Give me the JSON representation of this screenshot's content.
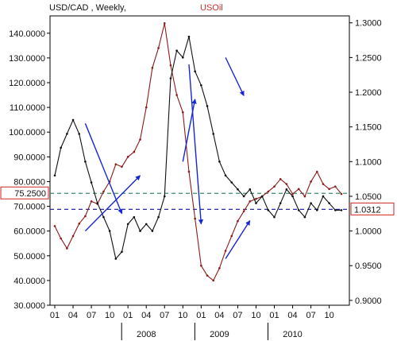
{
  "chart_data": {
    "type": "line",
    "title_left": "USD/CAD , Weekly,",
    "title_right": "USOil",
    "left_axis": {
      "range": [
        30,
        147
      ],
      "ticks": [
        "140.0000",
        "130.0000",
        "120.0000",
        "110.0000",
        "100.0000",
        "90.0000",
        "80.0000",
        "70.0000",
        "60.0000",
        "50.0000",
        "40.0000",
        "30.0000"
      ],
      "tick_values": [
        140,
        130,
        120,
        110,
        100,
        90,
        80,
        70,
        60,
        50,
        40,
        30
      ],
      "current_label": "75.2500",
      "current_value": 75.25,
      "label_color": "#cc2222"
    },
    "right_axis": {
      "range": [
        0.893,
        1.31
      ],
      "ticks": [
        "1.3000",
        "1.2500",
        "1.2000",
        "1.1500",
        "1.1000",
        "1.0500",
        "1.0000",
        "0.9500",
        "0.9000"
      ],
      "tick_values": [
        1.3,
        1.25,
        1.2,
        1.15,
        1.1,
        1.05,
        1.0,
        0.95,
        0.9
      ],
      "current_label": "1.0312",
      "current_value": 1.0312
    },
    "x_axis": {
      "month_ticks": [
        "01",
        "04",
        "07",
        "10",
        "01",
        "04",
        "07",
        "10",
        "01",
        "04",
        "07",
        "10",
        "01",
        "04",
        "07",
        "10"
      ],
      "month_tick_index": [
        0,
        3,
        6,
        9,
        12,
        15,
        18,
        21,
        24,
        27,
        30,
        33,
        36,
        39,
        42,
        45
      ],
      "years": [
        "2008",
        "2009",
        "2010"
      ],
      "year_index": [
        15,
        27,
        39
      ]
    },
    "series": [
      {
        "name": "USOil",
        "axis": "left",
        "color": "#8b1a1a",
        "x": [
          0,
          1,
          2,
          3,
          4,
          5,
          6,
          7,
          8,
          9,
          10,
          11,
          12,
          13,
          14,
          15,
          16,
          17,
          18,
          19,
          20,
          21,
          22,
          23,
          24,
          25,
          26,
          27,
          28,
          29,
          30,
          31,
          32,
          33,
          34,
          35,
          36,
          37,
          38,
          39,
          40,
          41,
          42,
          43,
          44,
          45,
          46,
          47
        ],
        "values": [
          62,
          57,
          53,
          58,
          63,
          66,
          72,
          71,
          76,
          80,
          87,
          86,
          90,
          92,
          97,
          110,
          126,
          134,
          144,
          127,
          115,
          108,
          84,
          65,
          46,
          42,
          40,
          45,
          52,
          58,
          64,
          68,
          72,
          73,
          74,
          76,
          78,
          81,
          79,
          75,
          77,
          74,
          80,
          84,
          79,
          77,
          78,
          75
        ]
      },
      {
        "name": "USD/CAD",
        "axis": "right",
        "color": "#111111",
        "x": [
          0,
          1,
          2,
          3,
          4,
          5,
          6,
          7,
          8,
          9,
          10,
          11,
          12,
          13,
          14,
          15,
          16,
          17,
          18,
          19,
          20,
          21,
          22,
          23,
          24,
          25,
          26,
          27,
          28,
          29,
          30,
          31,
          32,
          33,
          34,
          35,
          36,
          37,
          38,
          39,
          40,
          41,
          42,
          43,
          44,
          45,
          46,
          47
        ],
        "values": [
          1.08,
          1.12,
          1.14,
          1.16,
          1.14,
          1.1,
          1.07,
          1.04,
          1.02,
          1.0,
          0.96,
          0.97,
          1.01,
          1.02,
          1.0,
          1.01,
          1.0,
          1.02,
          1.05,
          1.22,
          1.26,
          1.25,
          1.28,
          1.23,
          1.21,
          1.18,
          1.14,
          1.1,
          1.08,
          1.07,
          1.06,
          1.05,
          1.06,
          1.04,
          1.05,
          1.03,
          1.02,
          1.04,
          1.06,
          1.05,
          1.03,
          1.02,
          1.04,
          1.03,
          1.05,
          1.04,
          1.03,
          1.03
        ]
      }
    ],
    "arrows": [
      {
        "from": [
          5,
          1.155
        ],
        "to": [
          11,
          1.025
        ]
      },
      {
        "from": [
          5,
          1.0
        ],
        "to": [
          14,
          1.08
        ]
      },
      {
        "from": [
          21,
          1.1
        ],
        "to": [
          23,
          1.19
        ]
      },
      {
        "from": [
          22,
          1.24
        ],
        "to": [
          24,
          1.01
        ]
      },
      {
        "from": [
          28,
          1.25
        ],
        "to": [
          31,
          1.195
        ]
      },
      {
        "from": [
          28,
          0.96
        ],
        "to": [
          32,
          1.015
        ]
      }
    ],
    "grid": false,
    "legend": "none"
  }
}
